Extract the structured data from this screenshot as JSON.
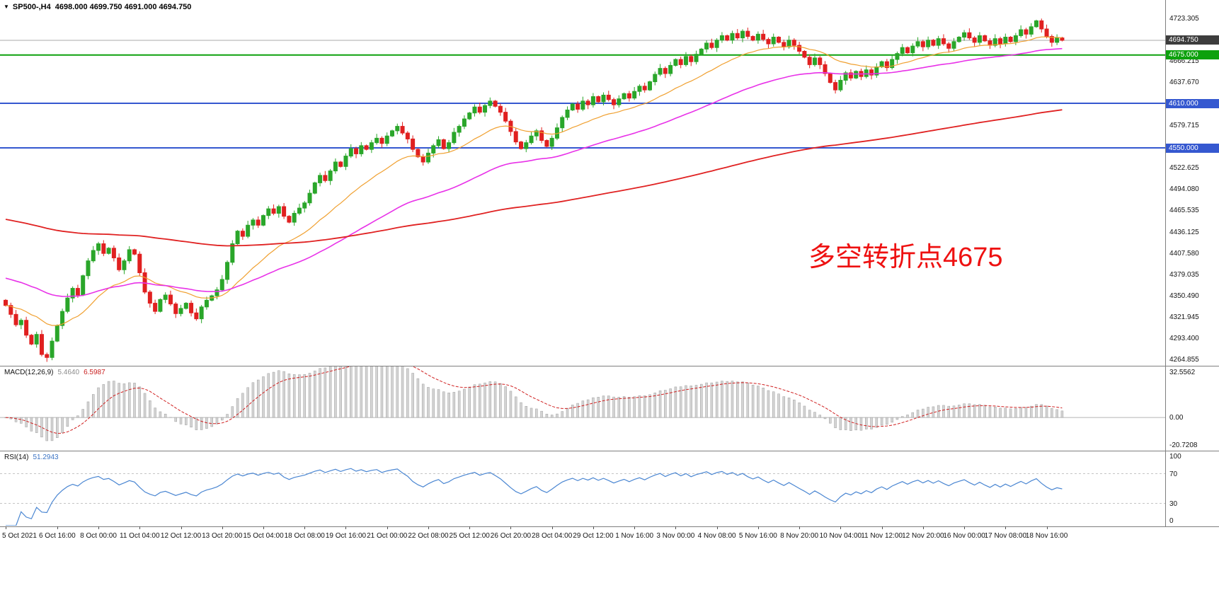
{
  "title_bar": {
    "symbol_tf": "SP500-,H4",
    "ohlc": "4698.000 4699.750 4691.000 4694.750"
  },
  "annotation": {
    "text": "多空转折点4675",
    "color": "#ee1111"
  },
  "chart_data": {
    "type": "candlestick",
    "symbol": "SP500-",
    "timeframe": "H4",
    "last_ohlc": {
      "open": 4698.0,
      "high": 4699.75,
      "low": 4691.0,
      "close": 4694.75
    },
    "candle_colors": {
      "up": "#2aa62a",
      "down": "#e02020"
    },
    "closes": [
      4338,
      4326,
      4312,
      4318,
      4298,
      4286,
      4299,
      4272,
      4268,
      4290,
      4311,
      4330,
      4348,
      4361,
      4352,
      4378,
      4398,
      4412,
      4421,
      4408,
      4415,
      4402,
      4386,
      4398,
      4413,
      4407,
      4382,
      4356,
      4341,
      4330,
      4346,
      4352,
      4340,
      4327,
      4334,
      4341,
      4328,
      4320,
      4336,
      4345,
      4351,
      4359,
      4373,
      4396,
      4421,
      4438,
      4431,
      4446,
      4453,
      4446,
      4459,
      4468,
      4462,
      4471,
      4458,
      4450,
      4462,
      4469,
      4476,
      4489,
      4503,
      4513,
      4506,
      4519,
      4531,
      4525,
      4539,
      4549,
      4542,
      4553,
      4548,
      4557,
      4563,
      4556,
      4566,
      4573,
      4579,
      4570,
      4562,
      4548,
      4538,
      4531,
      4543,
      4553,
      4561,
      4549,
      4557,
      4571,
      4579,
      4589,
      4597,
      4605,
      4598,
      4607,
      4613,
      4606,
      4598,
      4586,
      4572,
      4558,
      4549,
      4557,
      4566,
      4573,
      4560,
      4552,
      4563,
      4577,
      4591,
      4601,
      4609,
      4602,
      4613,
      4608,
      4619,
      4612,
      4621,
      4615,
      4608,
      4616,
      4623,
      4617,
      4626,
      4633,
      4628,
      4639,
      4649,
      4657,
      4650,
      4661,
      4669,
      4662,
      4673,
      4666,
      4676,
      4683,
      4691,
      4685,
      4695,
      4701,
      4695,
      4704,
      4698,
      4707,
      4700,
      4695,
      4703,
      4696,
      4690,
      4699,
      4692,
      4686,
      4695,
      4688,
      4680,
      4672,
      4662,
      4671,
      4662,
      4650,
      4638,
      4628,
      4641,
      4651,
      4644,
      4653,
      4646,
      4655,
      4648,
      4659,
      4666,
      4658,
      4669,
      4677,
      4685,
      4678,
      4687,
      4693,
      4686,
      4695,
      4688,
      4697,
      4690,
      4684,
      4693,
      4699,
      4705,
      4698,
      4692,
      4701,
      4694,
      4688,
      4697,
      4690,
      4699,
      4693,
      4701,
      4709,
      4703,
      4713,
      4721,
      4710,
      4700,
      4692,
      4698,
      4694.75
    ],
    "price_axis": {
      "grid_labels": [
        4723.305,
        4666.215,
        4637.67,
        4579.715,
        4522.625,
        4494.08,
        4465.535,
        4436.125,
        4407.58,
        4379.035,
        4350.49,
        4321.945,
        4293.4,
        4264.855
      ],
      "boxes": [
        {
          "text": "4694.750",
          "price": 4694.75,
          "bg": "#3d3d3d"
        },
        {
          "text": "4675.000",
          "price": 4675.0,
          "bg": "#0da10d"
        },
        {
          "text": "4610.000",
          "price": 4610.0,
          "bg": "#3558d0"
        },
        {
          "text": "4550.000",
          "price": 4550.0,
          "bg": "#3558d0"
        }
      ]
    },
    "hlines": [
      {
        "price": 4694.75,
        "color": "#a8a8a8",
        "width": 1
      },
      {
        "price": 4675.0,
        "color": "#0da10d",
        "width": 2
      },
      {
        "price": 4610.0,
        "color": "#3558d0",
        "width": 2
      },
      {
        "price": 4550.0,
        "color": "#3558d0",
        "width": 2
      }
    ],
    "moving_averages": [
      {
        "name": "fast",
        "period": 20,
        "seed": 4338,
        "color": "#f0a030",
        "stroke": 1.2
      },
      {
        "name": "mid",
        "period": 55,
        "seed": 4376,
        "color": "#e832e8",
        "stroke": 1.6
      },
      {
        "name": "slow",
        "period": 200,
        "seed": 4455,
        "color": "#e02222",
        "stroke": 1.8
      }
    ],
    "time_axis": [
      {
        "label": "5 Oct 2021",
        "bar": 0
      },
      {
        "label": "6 Oct 16:00",
        "bar": 10
      },
      {
        "label": "8 Oct 00:00",
        "bar": 18
      },
      {
        "label": "11 Oct 04:00",
        "bar": 26
      },
      {
        "label": "12 Oct 12:00",
        "bar": 34
      },
      {
        "label": "13 Oct 20:00",
        "bar": 42
      },
      {
        "label": "15 Oct 04:00",
        "bar": 50
      },
      {
        "label": "18 Oct 08:00",
        "bar": 58
      },
      {
        "label": "19 Oct 16:00",
        "bar": 66
      },
      {
        "label": "21 Oct 00:00",
        "bar": 74
      },
      {
        "label": "22 Oct 08:00",
        "bar": 82
      },
      {
        "label": "25 Oct 12:00",
        "bar": 90
      },
      {
        "label": "26 Oct 20:00",
        "bar": 98
      },
      {
        "label": "28 Oct 04:00",
        "bar": 106
      },
      {
        "label": "29 Oct 12:00",
        "bar": 114
      },
      {
        "label": "1 Nov 16:00",
        "bar": 122
      },
      {
        "label": "3 Nov 00:00",
        "bar": 130
      },
      {
        "label": "4 Nov 08:00",
        "bar": 138
      },
      {
        "label": "5 Nov 16:00",
        "bar": 146
      },
      {
        "label": "8 Nov 20:00",
        "bar": 154
      },
      {
        "label": "10 Nov 04:00",
        "bar": 162
      },
      {
        "label": "11 Nov 12:00",
        "bar": 170
      },
      {
        "label": "12 Nov 20:00",
        "bar": 178
      },
      {
        "label": "16 Nov 00:00",
        "bar": 186
      },
      {
        "label": "17 Nov 08:00",
        "bar": 194
      },
      {
        "label": "18 Nov 16:00",
        "bar": 202
      }
    ],
    "macd": {
      "label": "MACD(12,26,9)",
      "value_main": "5.4640",
      "value_signal": "6.5987",
      "scale_labels": [
        "32.5562",
        "0.00",
        "-20.7208"
      ],
      "scale_max": 32.5562,
      "scale_min": -20.7208,
      "histogram_color": "#d4d4d4",
      "signal_color": "#d02020"
    },
    "rsi": {
      "label": "RSI(14)",
      "value": "51.2943",
      "scale_labels": [
        "100",
        "70",
        "30",
        "0"
      ],
      "guides": [
        70,
        30
      ],
      "line_color": "#4a86d2"
    }
  }
}
